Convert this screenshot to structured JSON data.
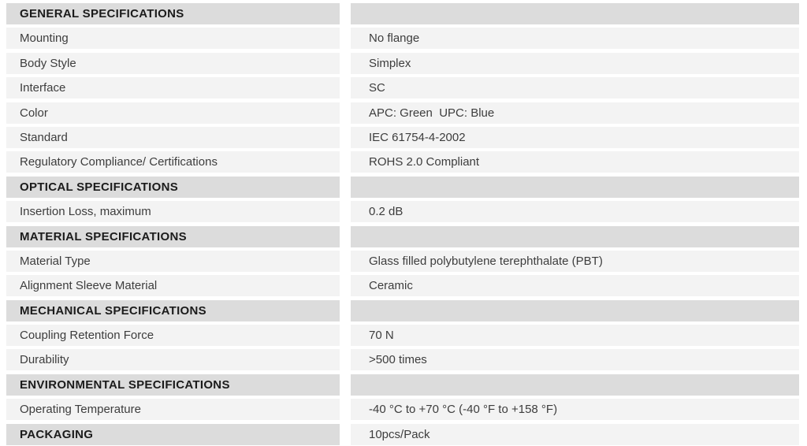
{
  "colors": {
    "page_bg": "#ffffff",
    "row_bg": "#f3f3f3",
    "section_bg": "#dcdcdc",
    "row_text": "#3d3d3d",
    "section_text": "#1b1b1b"
  },
  "table": {
    "rows": [
      {
        "type": "section",
        "label": "GENERAL SPECIFICATIONS",
        "value": ""
      },
      {
        "type": "data",
        "label": "Mounting",
        "value": "No flange"
      },
      {
        "type": "data",
        "label": "Body Style",
        "value": "Simplex"
      },
      {
        "type": "data",
        "label": "Interface",
        "value": "SC"
      },
      {
        "type": "data",
        "label": "Color",
        "value": "APC: Green  UPC: Blue"
      },
      {
        "type": "data",
        "label": "Standard",
        "value": "IEC 61754-4-2002"
      },
      {
        "type": "data",
        "label": "Regulatory Compliance/ Certifications",
        "value": "ROHS 2.0 Compliant"
      },
      {
        "type": "section",
        "label": "OPTICAL SPECIFICATIONS",
        "value": ""
      },
      {
        "type": "data",
        "label": "Insertion Loss, maximum",
        "value": "0.2 dB"
      },
      {
        "type": "section",
        "label": "MATERIAL SPECIFICATIONS",
        "value": ""
      },
      {
        "type": "data",
        "label": "Material Type",
        "value": "Glass filled polybutylene terephthalate (PBT)"
      },
      {
        "type": "data",
        "label": "Alignment Sleeve Material",
        "value": "Ceramic"
      },
      {
        "type": "section",
        "label": "MECHANICAL SPECIFICATIONS",
        "value": ""
      },
      {
        "type": "data",
        "label": "Coupling Retention Force",
        "value": "70 N"
      },
      {
        "type": "data",
        "label": "Durability",
        "value": ">500 times"
      },
      {
        "type": "section",
        "label": "ENVIRONMENTAL SPECIFICATIONS",
        "value": ""
      },
      {
        "type": "data",
        "label": "Operating Temperature",
        "value": "-40 °C to +70 °C (-40 °F to +158 °F)"
      },
      {
        "type": "section",
        "label": "PACKAGING",
        "value": "10pcs/Pack"
      }
    ]
  }
}
